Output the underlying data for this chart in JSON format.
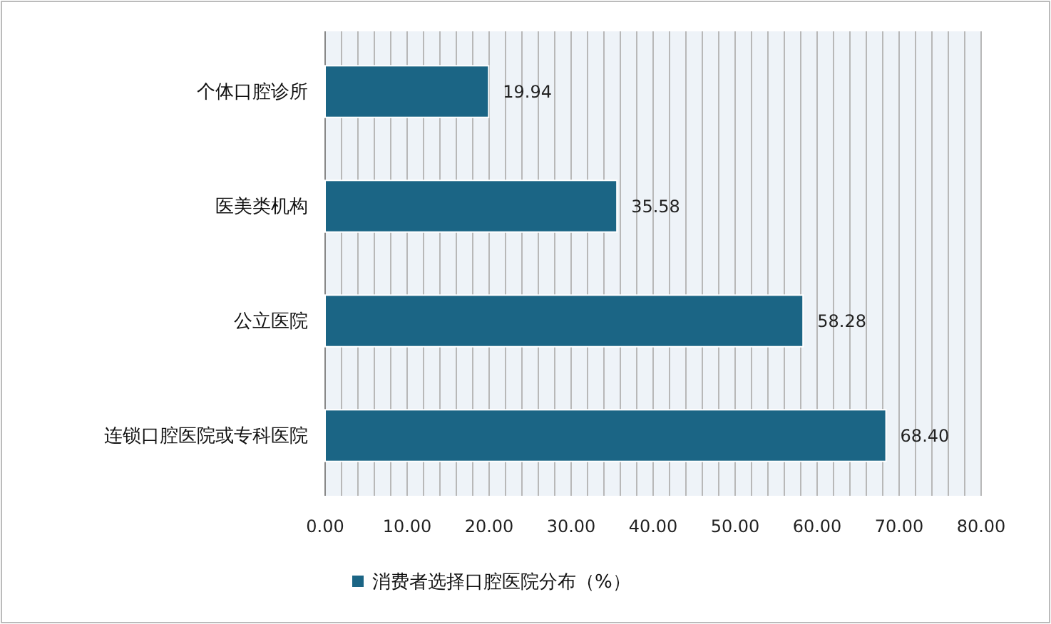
{
  "chart_data": {
    "type": "bar",
    "orientation": "horizontal",
    "categories": [
      "个体口腔诊所",
      "医美类机构",
      "公立医院",
      "连锁口腔医院或专科医院"
    ],
    "series": [
      {
        "name": "消费者选择口腔医院分布（%）",
        "color": "#1b6585",
        "values": [
          19.94,
          35.58,
          58.28,
          68.4
        ],
        "value_labels": [
          "19.94",
          "35.58",
          "58.28",
          "68.40"
        ]
      }
    ],
    "xlim": [
      0,
      80
    ],
    "xticks": [
      {
        "value": 0,
        "label": "0.00"
      },
      {
        "value": 2,
        "label": null
      },
      {
        "value": 4,
        "label": null
      },
      {
        "value": 6,
        "label": null
      },
      {
        "value": 8,
        "label": null
      },
      {
        "value": 10,
        "label": "10.00"
      },
      {
        "value": 12,
        "label": null
      },
      {
        "value": 14,
        "label": null
      },
      {
        "value": 16,
        "label": null
      },
      {
        "value": 18,
        "label": null
      },
      {
        "value": 20,
        "label": "20.00"
      },
      {
        "value": 22,
        "label": null
      },
      {
        "value": 24,
        "label": null
      },
      {
        "value": 26,
        "label": null
      },
      {
        "value": 28,
        "label": null
      },
      {
        "value": 30,
        "label": "30.00"
      },
      {
        "value": 32,
        "label": null
      },
      {
        "value": 34,
        "label": null
      },
      {
        "value": 36,
        "label": null
      },
      {
        "value": 38,
        "label": null
      },
      {
        "value": 40,
        "label": "40.00"
      },
      {
        "value": 42,
        "label": null
      },
      {
        "value": 44,
        "label": null
      },
      {
        "value": 46,
        "label": null
      },
      {
        "value": 48,
        "label": null
      },
      {
        "value": 50,
        "label": "50.00"
      },
      {
        "value": 52,
        "label": null
      },
      {
        "value": 54,
        "label": null
      },
      {
        "value": 56,
        "label": null
      },
      {
        "value": 58,
        "label": null
      },
      {
        "value": 60,
        "label": "60.00"
      },
      {
        "value": 62,
        "label": null
      },
      {
        "value": 64,
        "label": null
      },
      {
        "value": 66,
        "label": null
      },
      {
        "value": 68,
        "label": null
      },
      {
        "value": 70,
        "label": "70.00"
      },
      {
        "value": 72,
        "label": null
      },
      {
        "value": 74,
        "label": null
      },
      {
        "value": 76,
        "label": null
      },
      {
        "value": 78,
        "label": null
      },
      {
        "value": 80,
        "label": "80.00"
      }
    ],
    "grid": "x",
    "legend": "bottom"
  }
}
